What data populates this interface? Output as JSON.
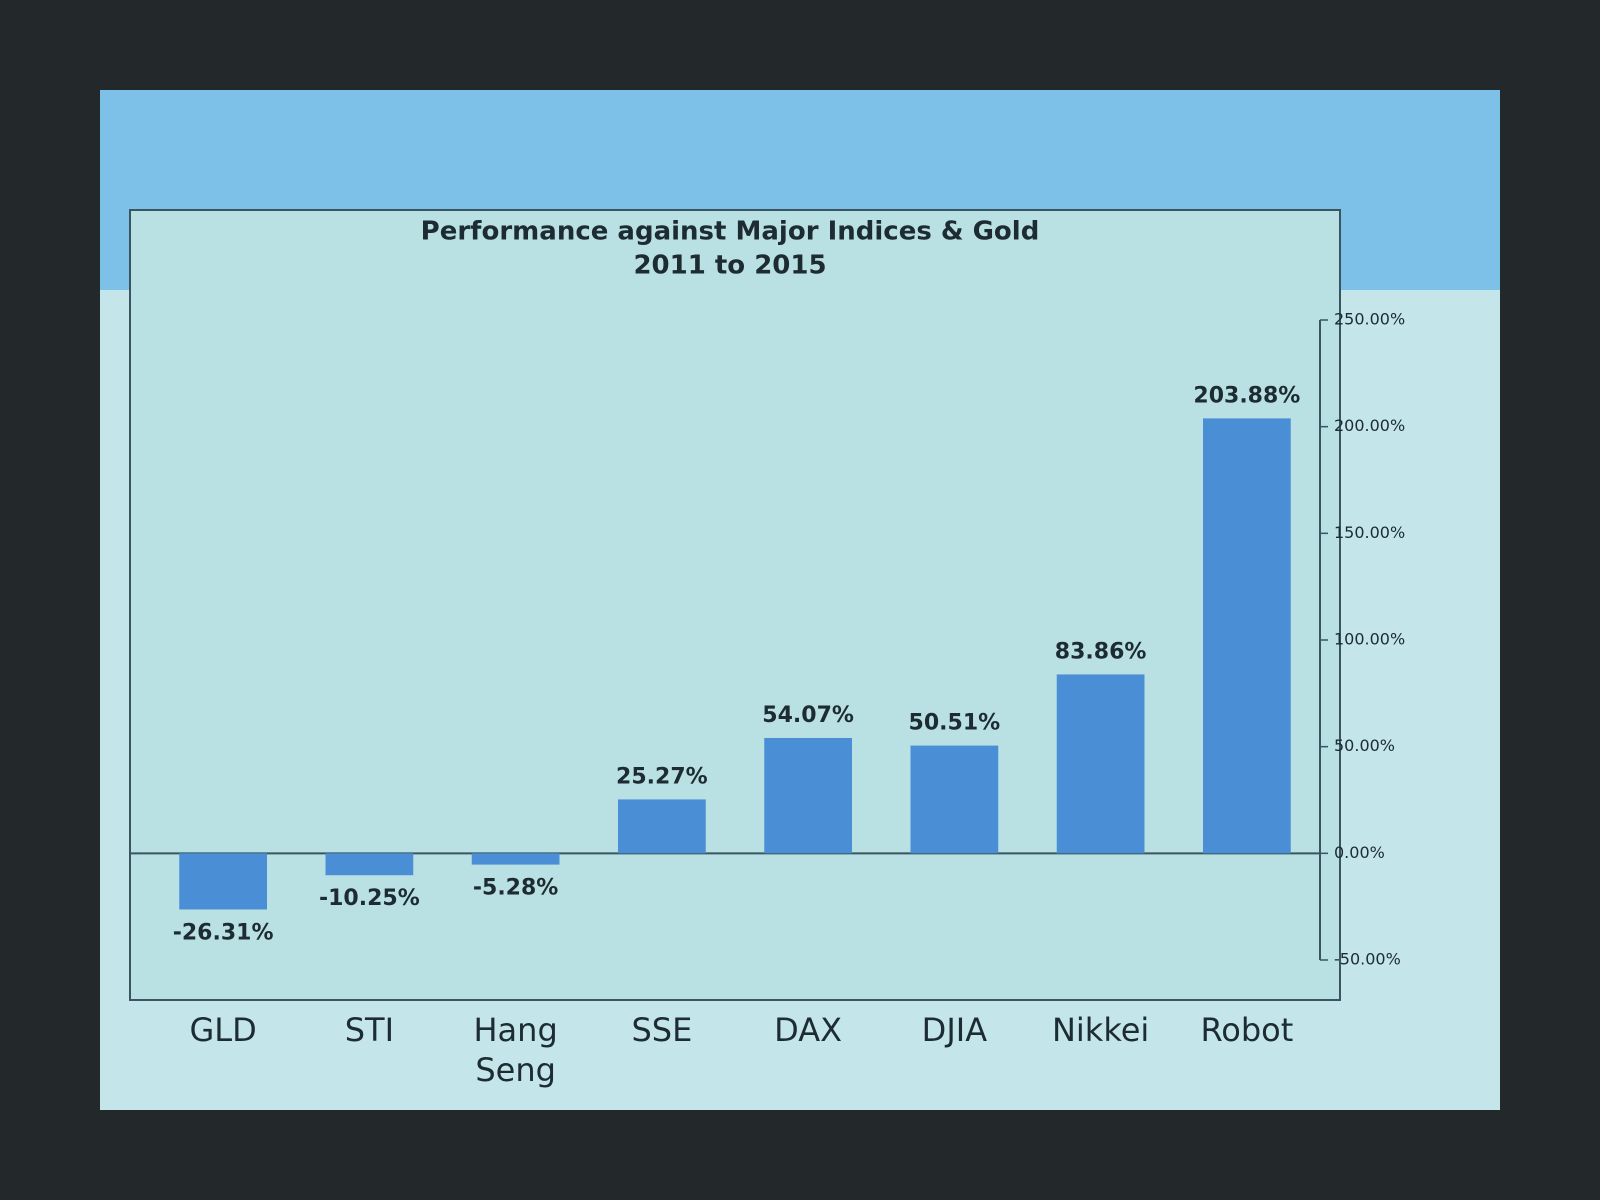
{
  "chart_data": {
    "type": "bar",
    "title": "Performance against Major Indices & Gold",
    "subtitle": "2011 to 2015",
    "categories": [
      "GLD",
      "STI",
      "Hang Seng",
      "SSE",
      "DAX",
      "DJIA",
      "Nikkei",
      "Robot"
    ],
    "values": [
      -26.31,
      -10.25,
      -5.28,
      25.27,
      54.07,
      50.51,
      83.86,
      203.88
    ],
    "value_labels": [
      "-26.31%",
      "-10.25%",
      "-5.28%",
      "25.27%",
      "54.07%",
      "50.51%",
      "83.86%",
      "203.88%"
    ],
    "color": "#4a8fd6",
    "ylim": [
      -50,
      250
    ],
    "yticks": [
      {
        "value": -50,
        "label": "-50.00%"
      },
      {
        "value": 0,
        "label": "0.00%"
      },
      {
        "value": 50,
        "label": "50.00%"
      },
      {
        "value": 100,
        "label": "100.00%"
      },
      {
        "value": 150,
        "label": "150.00%"
      },
      {
        "value": 200,
        "label": "200.00%"
      },
      {
        "value": 250,
        "label": "250.00%"
      }
    ],
    "grid": false
  }
}
